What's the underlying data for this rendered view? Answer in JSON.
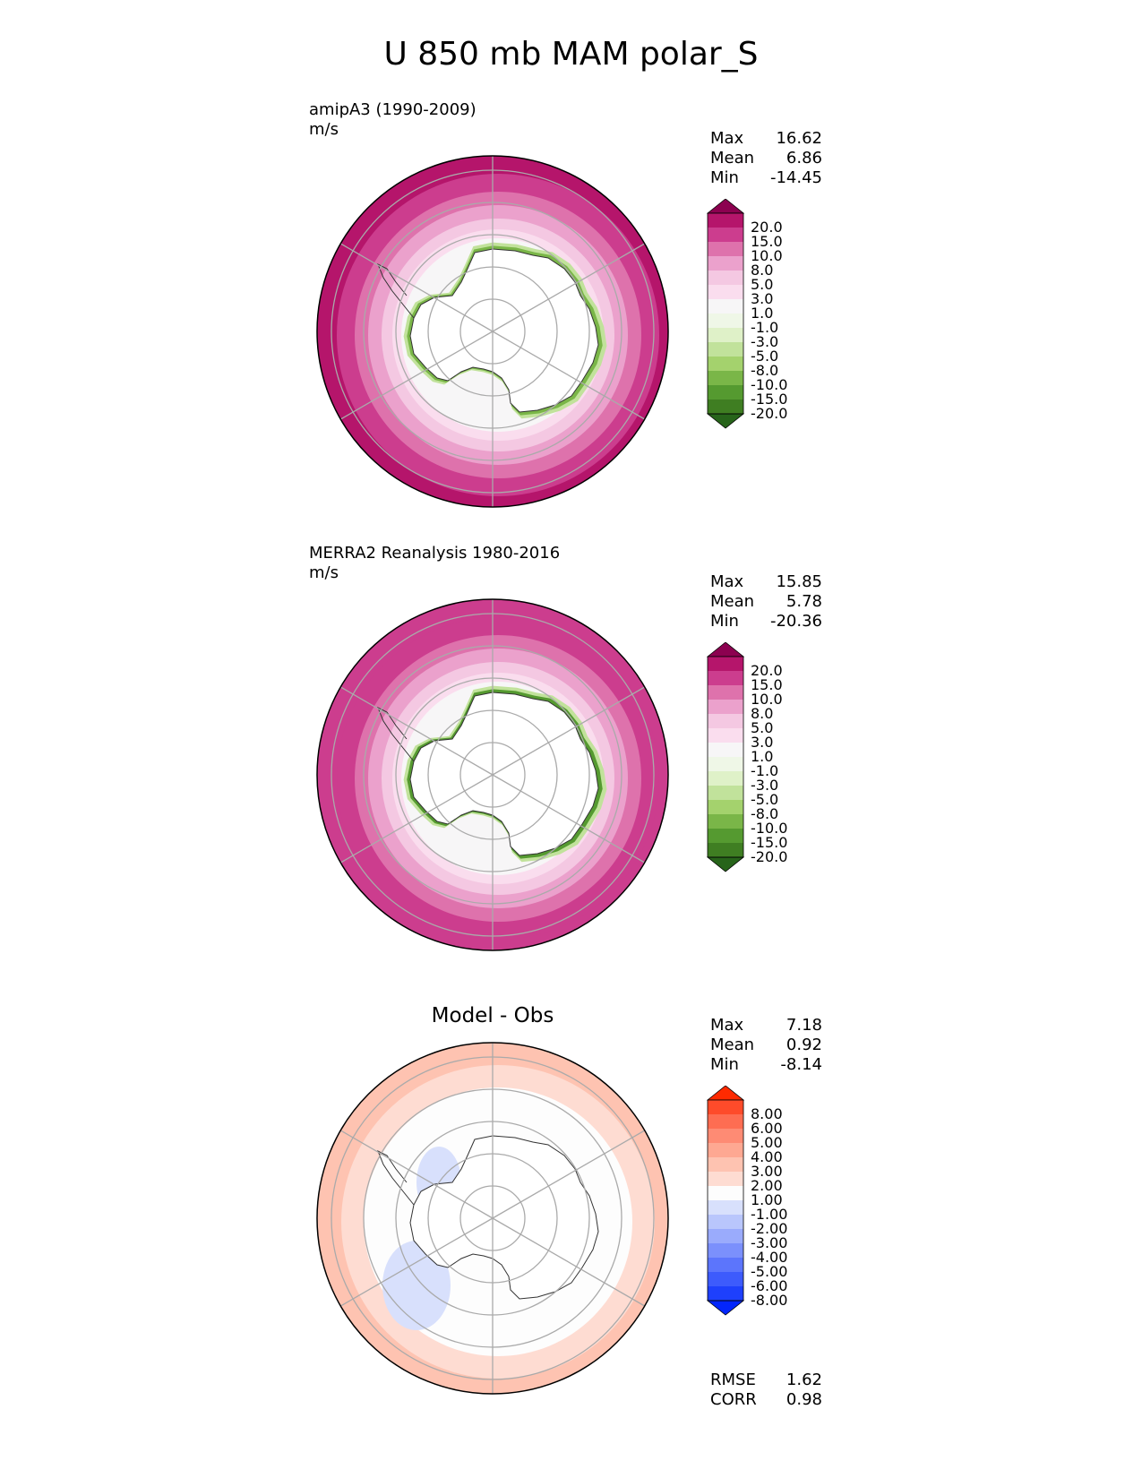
{
  "title": "U 850 mb MAM polar_S",
  "panels": [
    {
      "id": "model",
      "title": "amipA3 (1990-2009)",
      "units": "m/s",
      "stats": {
        "max_label": "Max",
        "max": "16.62",
        "mean_label": "Mean",
        "mean": "6.86",
        "min_label": "Min",
        "min": "-14.45"
      },
      "colorbar": {
        "labels": [
          "20.0",
          "15.0",
          "10.0",
          "8.0",
          "5.0",
          "3.0",
          "1.0",
          "-1.0",
          "-3.0",
          "-5.0",
          "-8.0",
          "-10.0",
          "-15.0",
          "-20.0"
        ],
        "colors": [
          "#8c0150",
          "#b5156b",
          "#cc3d8e",
          "#de72ac",
          "#eba1cc",
          "#f4c8e2",
          "#faddee",
          "#f7f6f7",
          "#eff7e7",
          "#dff1c8",
          "#c1e29b",
          "#a4d26d",
          "#7ab648",
          "#559a30",
          "#3f7e22",
          "#27641a"
        ]
      }
    },
    {
      "id": "obs",
      "title": "MERRA2 Reanalysis 1980-2016",
      "units": "m/s",
      "stats": {
        "max_label": "Max",
        "max": "15.85",
        "mean_label": "Mean",
        "mean": "5.78",
        "min_label": "Min",
        "min": "-20.36"
      },
      "colorbar": {
        "labels": [
          "20.0",
          "15.0",
          "10.0",
          "8.0",
          "5.0",
          "3.0",
          "1.0",
          "-1.0",
          "-3.0",
          "-5.0",
          "-8.0",
          "-10.0",
          "-15.0",
          "-20.0"
        ],
        "colors": [
          "#8c0150",
          "#b5156b",
          "#cc3d8e",
          "#de72ac",
          "#eba1cc",
          "#f4c8e2",
          "#faddee",
          "#f7f6f7",
          "#eff7e7",
          "#dff1c8",
          "#c1e29b",
          "#a4d26d",
          "#7ab648",
          "#559a30",
          "#3f7e22",
          "#27641a"
        ]
      }
    },
    {
      "id": "diff",
      "title": "Model - Obs",
      "stats": {
        "max_label": "Max",
        "max": "7.18",
        "mean_label": "Mean",
        "mean": "0.92",
        "min_label": "Min",
        "min": "-8.14"
      },
      "metrics": {
        "rmse_label": "RMSE",
        "rmse": "1.62",
        "corr_label": "CORR",
        "corr": "0.98"
      },
      "colorbar": {
        "labels": [
          "8.00",
          "6.00",
          "5.00",
          "4.00",
          "3.00",
          "2.00",
          "1.00",
          "-1.00",
          "-2.00",
          "-3.00",
          "-4.00",
          "-5.00",
          "-6.00",
          "-8.00"
        ],
        "colors": [
          "#fe2a00",
          "#fe4b2a",
          "#fe6d52",
          "#fe8b74",
          "#fea892",
          "#fec3b1",
          "#fedcd2",
          "#fdfdfd",
          "#d8e0fc",
          "#b9c6fc",
          "#9aabfc",
          "#7b90fc",
          "#5c75fc",
          "#3d5bfc",
          "#1e40fc",
          "#0326fc"
        ]
      }
    }
  ]
}
